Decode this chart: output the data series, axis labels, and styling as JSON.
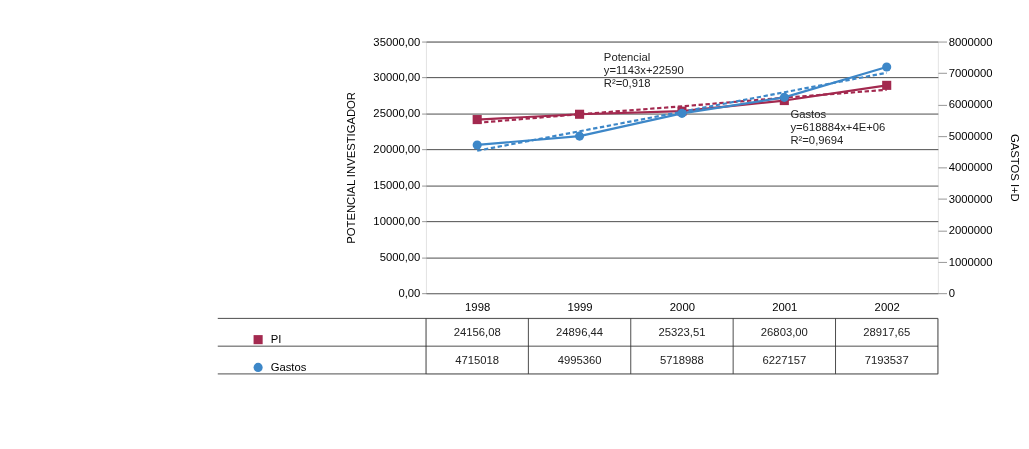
{
  "chart_data": {
    "type": "line",
    "ylabel": "POTENCIAL INVESTIGADOR",
    "y2label": "GASTOS I+D",
    "categories": [
      "1998",
      "1999",
      "2000",
      "2001",
      "2002"
    ],
    "ylim": [
      0,
      35000
    ],
    "yticks": [
      {
        "value": 0,
        "label": "0,00"
      },
      {
        "value": 5000,
        "label": "5000,00"
      },
      {
        "value": 10000,
        "label": "10000,00"
      },
      {
        "value": 15000,
        "label": "15000,00"
      },
      {
        "value": 20000,
        "label": "20000,00"
      },
      {
        "value": 25000,
        "label": "25000,00"
      },
      {
        "value": 30000,
        "label": "30000,00"
      },
      {
        "value": 35000,
        "label": "35000,00"
      }
    ],
    "y2lim": [
      0,
      8000000
    ],
    "y2ticks": [
      0,
      1000000,
      2000000,
      3000000,
      4000000,
      5000000,
      6000000,
      7000000,
      8000000
    ],
    "grid": "y",
    "legend": "bottom",
    "series": [
      {
        "name": "PI",
        "color": "#a3294f",
        "marker": "square",
        "line_style": "solid",
        "values": [
          24156.08,
          24896.44,
          25323.51,
          26803.0,
          28917.65
        ],
        "value_labels": [
          "24156,08",
          "24896,44",
          "25323,51",
          "26803,00",
          "28917,65"
        ]
      },
      {
        "name": "Gastos",
        "color": "#3d87c8",
        "marker": "circle",
        "line_style": "solid",
        "axis": "y2",
        "values": [
          4715018,
          4995360,
          5718988,
          6227157,
          7193537
        ],
        "value_labels": [
          "4715018",
          "4995360",
          "5718988",
          "6227157",
          "7193537"
        ]
      },
      {
        "color": "#a3294f",
        "marker": "none",
        "line_style": "dashed",
        "values": [
          23700,
          24900,
          26000,
          27200,
          28300
        ]
      },
      {
        "color": "#3d87c8",
        "marker": "none",
        "line_style": "dashed",
        "axis": "y2",
        "values": [
          4530000,
          5150000,
          5770000,
          6390000,
          7010000
        ]
      }
    ],
    "annotations": [
      "Potencial\ny=1143x+22590\nR²=0,918",
      "Gastos\ny=618884x+4E+06\nR²=0,9694"
    ]
  }
}
